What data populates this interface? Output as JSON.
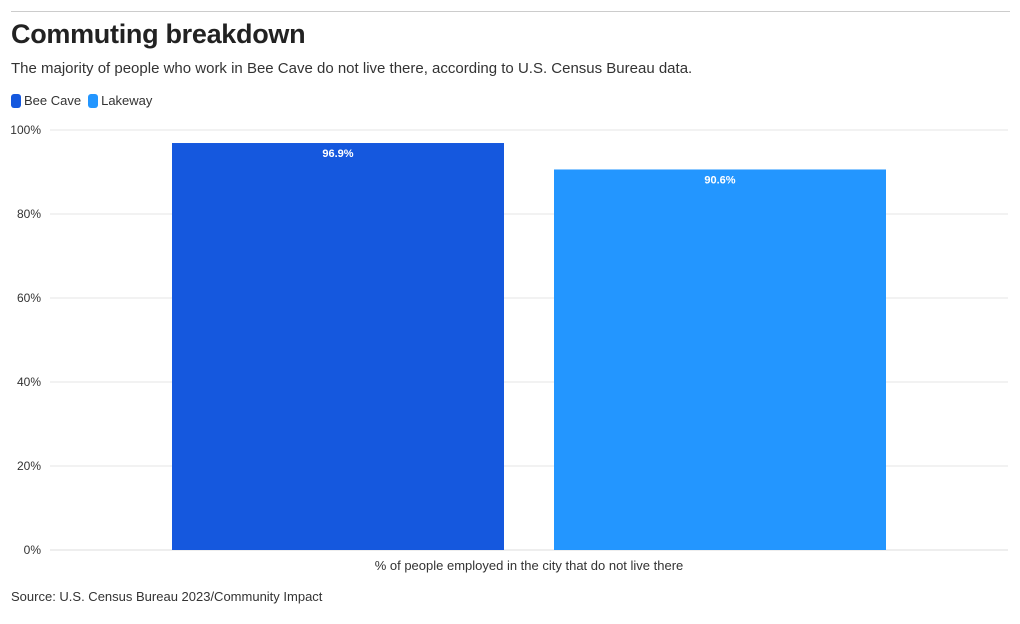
{
  "header": {
    "title": "Commuting breakdown",
    "subtitle": "The majority of people who work in Bee Cave do not live there, according to U.S. Census Bureau data."
  },
  "footer": {
    "source": "Source: U.S. Census Bureau 2023/Community Impact"
  },
  "colors": {
    "bee_cave": "#1558DE",
    "lakeway": "#2396FF",
    "grid": "#e6e6e6",
    "text": "#333333"
  },
  "chart_data": {
    "type": "bar",
    "title": "Commuting breakdown",
    "subtitle": "The majority of people who work in Bee Cave do not live there, according to U.S. Census Bureau data.",
    "categories": [
      "% of people employed in the city that do not live there"
    ],
    "series": [
      {
        "name": "Bee Cave",
        "values": [
          96.9
        ],
        "color": "#1558DE",
        "label": "96.9%"
      },
      {
        "name": "Lakeway",
        "values": [
          90.6
        ],
        "color": "#2396FF",
        "label": "90.6%"
      }
    ],
    "ylim": [
      0,
      100
    ],
    "yticks": [
      "0%",
      "20%",
      "40%",
      "60%",
      "80%",
      "100%"
    ],
    "ytick_values": [
      0,
      20,
      40,
      60,
      80,
      100
    ],
    "xlabel": "",
    "ylabel": "",
    "grid": true,
    "legend": "top-left"
  }
}
